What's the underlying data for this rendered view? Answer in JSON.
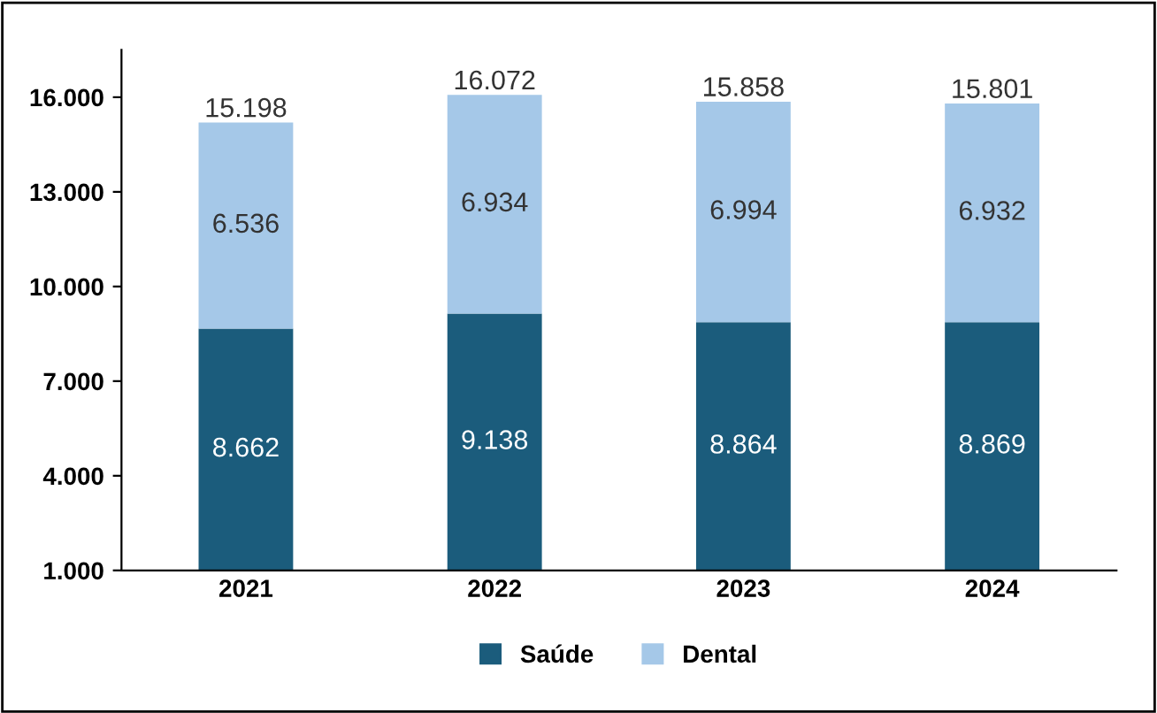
{
  "chart_data": {
    "type": "bar",
    "stacked": true,
    "categories": [
      "2021",
      "2022",
      "2023",
      "2024"
    ],
    "series": [
      {
        "name": "Saúde",
        "color": "#1b5c7c",
        "values": [
          8662,
          9138,
          8864,
          8869
        ],
        "value_labels": [
          "8.662",
          "9.138",
          "8.864",
          "8.869"
        ]
      },
      {
        "name": "Dental",
        "color": "#a5c8e8",
        "values": [
          6536,
          6934,
          6994,
          6932
        ],
        "value_labels": [
          "6.536",
          "6.934",
          "6.994",
          "6.932"
        ]
      }
    ],
    "totals": [
      "15.198",
      "16.072",
      "15.858",
      "15.801"
    ],
    "ylim": [
      1000,
      17500
    ],
    "yticks": [
      {
        "value": 1000,
        "label": "1.000"
      },
      {
        "value": 4000,
        "label": "4.000"
      },
      {
        "value": 7000,
        "label": "7.000"
      },
      {
        "value": 10000,
        "label": "10.000"
      },
      {
        "value": 13000,
        "label": "13.000"
      },
      {
        "value": 16000,
        "label": "16.000"
      }
    ],
    "grid": false,
    "legend": "bottom"
  }
}
